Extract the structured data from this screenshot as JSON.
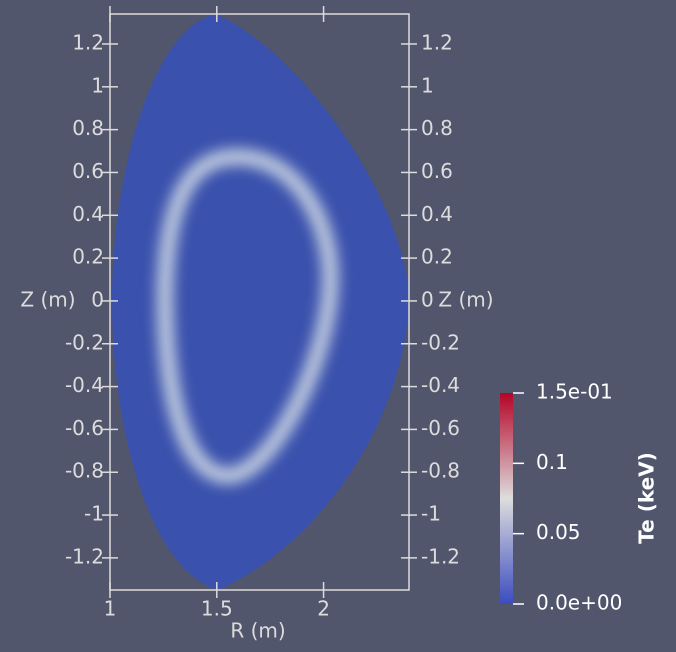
{
  "chart_data": {
    "type": "heatmap",
    "x_label": "R (m)",
    "y_label": "Z (m)",
    "xlim": [
      1,
      2.4
    ],
    "xticks": [
      1,
      1.5,
      2
    ],
    "ylim": [
      -1.35,
      1.34
    ],
    "yticks": [
      -1.2,
      -1,
      -0.8,
      -0.6,
      -0.4,
      -0.2,
      0,
      0.2,
      0.4,
      0.6,
      0.8,
      1,
      1.2
    ],
    "colorbar": {
      "label": "Te (keV)",
      "lim": [
        0,
        0.15
      ],
      "ticks": [
        {
          "value": 0,
          "label": "0.0e+00"
        },
        0.05,
        0.1,
        {
          "value": 0.15,
          "label": "1.5e-01"
        }
      ],
      "colors": [
        "#3b4cc0",
        "#dddddd",
        "#b40426"
      ]
    }
  }
}
